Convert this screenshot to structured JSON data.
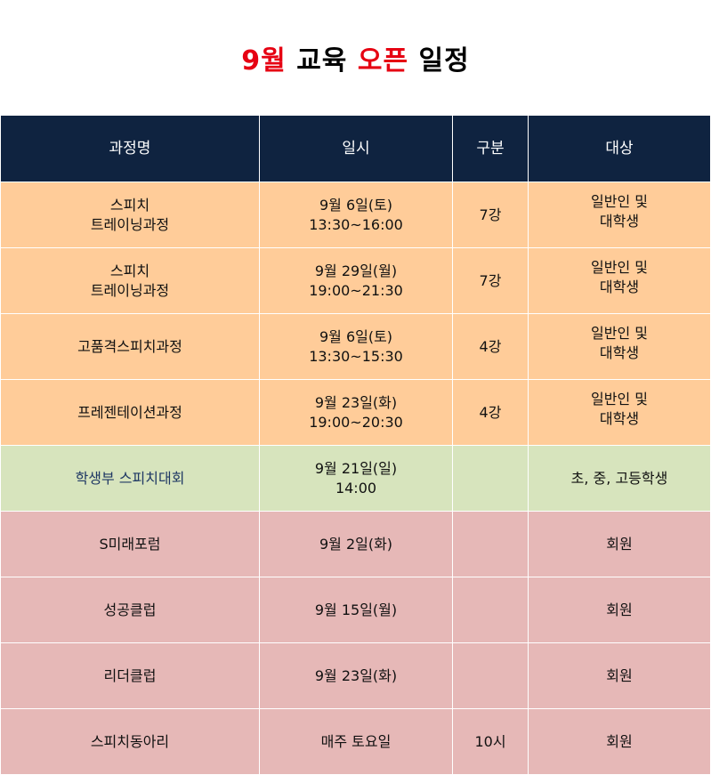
{
  "title": {
    "part1": "9월",
    "part2": "교육",
    "part3": "오픈",
    "part4": "일정"
  },
  "headers": [
    "과정명",
    "일시",
    "구분",
    "대상"
  ],
  "rows": [
    {
      "style": "orange",
      "name": "스피치\n트레이닝과정",
      "date": "9월 6일(토)\n13:30~16:00",
      "type": "7강",
      "target": "일반인 및\n대학생"
    },
    {
      "style": "orange",
      "name": "스피치\n트레이닝과정",
      "date": "9월 29일(월)\n19:00~21:30",
      "type": "7강",
      "target": "일반인 및\n대학생"
    },
    {
      "style": "orange",
      "name": "고품격스피치과정",
      "date": "9월 6일(토)\n13:30~15:30",
      "type": "4강",
      "target": "일반인 및\n대학생"
    },
    {
      "style": "orange",
      "name": "프레젠테이션과정",
      "date": "9월 23일(화)\n19:00~20:30",
      "type": "4강",
      "target": "일반인 및\n대학생"
    },
    {
      "style": "green",
      "name": "학생부 스피치대회",
      "date": "9월 21일(일)\n14:00",
      "type": "",
      "target": "초, 중, 고등학생"
    },
    {
      "style": "pink",
      "name": "S미래포럼",
      "date": "9월 2일(화)",
      "type": "",
      "target": "회원"
    },
    {
      "style": "pink",
      "name": "성공클럽",
      "date": "9월 15일(월)",
      "type": "",
      "target": "회원"
    },
    {
      "style": "pink",
      "name": "리더클럽",
      "date": "9월 23일(화)",
      "type": "",
      "target": "회원"
    },
    {
      "style": "pink",
      "name": "스피치동아리",
      "date": "매주 토요일",
      "type": "10시",
      "target": "회원"
    }
  ]
}
